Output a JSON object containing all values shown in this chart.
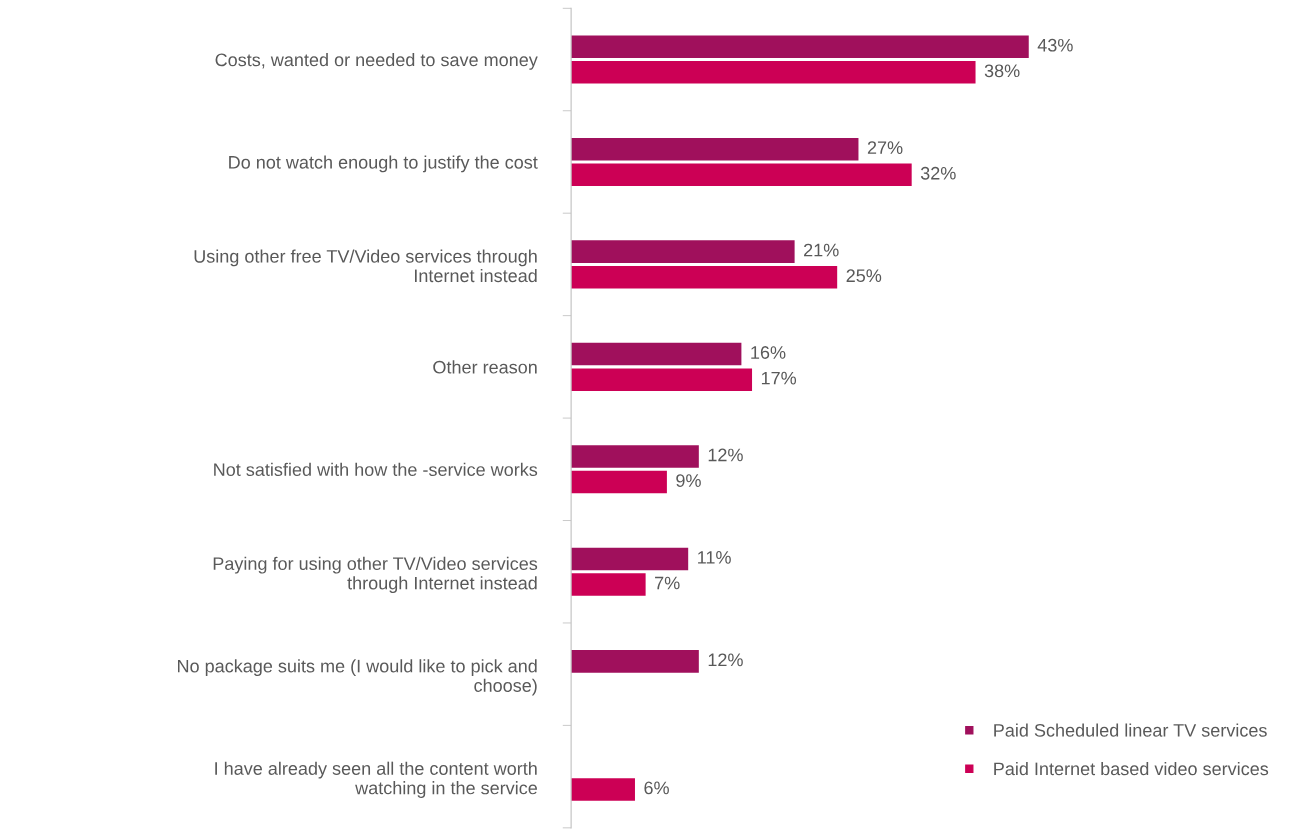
{
  "chart_data": {
    "type": "bar",
    "orientation": "horizontal",
    "categories": [
      "Costs, wanted or needed to save money",
      "Do not watch enough to justify the cost",
      "Using other free TV/Video services through\nInternet instead",
      "Other reason",
      "Not satisfied with how the -service works",
      "Paying for using other TV/Video services\nthrough Internet instead",
      "No package suits me (I would like to pick and\nchoose)",
      "I have already seen all the content worth\nwatching in the service"
    ],
    "series": [
      {
        "name": "Paid Scheduled linear TV services",
        "color": "#a0105c",
        "values": [
          43,
          27,
          21,
          16,
          12,
          11,
          12,
          null
        ],
        "value_labels": [
          "43%",
          "27%",
          "21%",
          "16%",
          "12%",
          "11%",
          "12%",
          null
        ]
      },
      {
        "name": "Paid Internet based video services",
        "color": "#cc0055",
        "values": [
          38,
          32,
          25,
          17,
          9,
          7,
          null,
          6
        ],
        "value_labels": [
          "38%",
          "32%",
          "25%",
          "17%",
          "9%",
          "7%",
          null,
          "6%"
        ]
      }
    ],
    "legend": "bottom right",
    "grid": false,
    "tick_labels": "y"
  }
}
